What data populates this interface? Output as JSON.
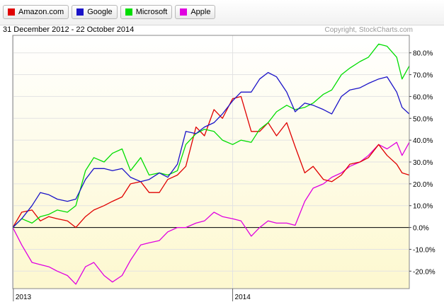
{
  "header": {
    "date_range": "31 December 2012 - 22 October 2014",
    "copyright": "Copyright, StockCharts.com"
  },
  "legend": [
    {
      "label": "Amazon.com",
      "color": "#e00000"
    },
    {
      "label": "Google",
      "color": "#1a12c8"
    },
    {
      "label": "Microsoft",
      "color": "#00dd00"
    },
    {
      "label": "Apple",
      "color": "#e000e0"
    }
  ],
  "chart_data": {
    "type": "line",
    "title": "",
    "xlabel": "",
    "ylabel": "",
    "x_ticks": [
      "2013",
      "2014"
    ],
    "y_ticks": [
      "80.0%",
      "70.0%",
      "60.0%",
      "50.0%",
      "40.0%",
      "30.0%",
      "20.0%",
      "10.0%",
      "0.0%",
      "-10.0%",
      "-20.0%"
    ],
    "ylim": [
      -28,
      88
    ],
    "xlim": [
      "2012-12-31",
      "2014-10-22"
    ],
    "series": [
      {
        "name": "Amazon.com",
        "color": "#e00000",
        "points": [
          [
            "2012-12-31",
            0
          ],
          [
            "2013-01-15",
            7
          ],
          [
            "2013-02-01",
            8
          ],
          [
            "2013-02-15",
            3
          ],
          [
            "2013-03-01",
            5
          ],
          [
            "2013-03-15",
            4
          ],
          [
            "2013-04-01",
            3
          ],
          [
            "2013-04-15",
            0
          ],
          [
            "2013-05-01",
            5
          ],
          [
            "2013-05-15",
            8
          ],
          [
            "2013-06-01",
            10
          ],
          [
            "2013-06-15",
            12
          ],
          [
            "2013-07-01",
            14
          ],
          [
            "2013-07-15",
            20
          ],
          [
            "2013-08-01",
            21
          ],
          [
            "2013-08-15",
            16
          ],
          [
            "2013-09-01",
            16
          ],
          [
            "2013-09-15",
            22
          ],
          [
            "2013-10-01",
            24
          ],
          [
            "2013-10-15",
            28
          ],
          [
            "2013-11-01",
            46
          ],
          [
            "2013-11-15",
            42
          ],
          [
            "2013-12-01",
            54
          ],
          [
            "2013-12-15",
            50
          ],
          [
            "2014-01-01",
            59
          ],
          [
            "2014-01-15",
            60
          ],
          [
            "2014-02-01",
            44
          ],
          [
            "2014-02-15",
            44
          ],
          [
            "2014-03-01",
            48
          ],
          [
            "2014-03-15",
            42
          ],
          [
            "2014-04-01",
            48
          ],
          [
            "2014-04-15",
            37
          ],
          [
            "2014-05-01",
            25
          ],
          [
            "2014-05-15",
            28
          ],
          [
            "2014-06-01",
            22
          ],
          [
            "2014-06-15",
            21
          ],
          [
            "2014-07-01",
            24
          ],
          [
            "2014-07-15",
            29
          ],
          [
            "2014-08-01",
            30
          ],
          [
            "2014-08-15",
            32
          ],
          [
            "2014-09-01",
            38
          ],
          [
            "2014-09-15",
            33
          ],
          [
            "2014-10-01",
            29
          ],
          [
            "2014-10-10",
            25
          ],
          [
            "2014-10-22",
            24
          ]
        ]
      },
      {
        "name": "Google",
        "color": "#1a12c8",
        "points": [
          [
            "2012-12-31",
            0
          ],
          [
            "2013-01-15",
            4
          ],
          [
            "2013-02-01",
            10
          ],
          [
            "2013-02-15",
            16
          ],
          [
            "2013-03-01",
            15
          ],
          [
            "2013-03-15",
            13
          ],
          [
            "2013-04-01",
            12
          ],
          [
            "2013-04-15",
            13
          ],
          [
            "2013-05-01",
            22
          ],
          [
            "2013-05-15",
            27
          ],
          [
            "2013-06-01",
            27
          ],
          [
            "2013-06-15",
            26
          ],
          [
            "2013-07-01",
            27
          ],
          [
            "2013-07-15",
            23
          ],
          [
            "2013-08-01",
            21
          ],
          [
            "2013-08-15",
            22
          ],
          [
            "2013-09-01",
            25
          ],
          [
            "2013-09-15",
            23
          ],
          [
            "2013-10-01",
            29
          ],
          [
            "2013-10-15",
            44
          ],
          [
            "2013-11-01",
            43
          ],
          [
            "2013-11-15",
            46
          ],
          [
            "2013-12-01",
            48
          ],
          [
            "2013-12-15",
            52
          ],
          [
            "2014-01-01",
            58
          ],
          [
            "2014-01-15",
            62
          ],
          [
            "2014-02-01",
            62
          ],
          [
            "2014-02-15",
            68
          ],
          [
            "2014-03-01",
            71
          ],
          [
            "2014-03-15",
            69
          ],
          [
            "2014-04-01",
            62
          ],
          [
            "2014-04-15",
            53
          ],
          [
            "2014-05-01",
            57
          ],
          [
            "2014-05-15",
            56
          ],
          [
            "2014-06-01",
            54
          ],
          [
            "2014-06-15",
            52
          ],
          [
            "2014-07-01",
            60
          ],
          [
            "2014-07-15",
            63
          ],
          [
            "2014-08-01",
            64
          ],
          [
            "2014-08-15",
            66
          ],
          [
            "2014-09-01",
            68
          ],
          [
            "2014-09-15",
            69
          ],
          [
            "2014-10-01",
            62
          ],
          [
            "2014-10-10",
            55
          ],
          [
            "2014-10-22",
            52
          ]
        ]
      },
      {
        "name": "Microsoft",
        "color": "#00dd00",
        "points": [
          [
            "2012-12-31",
            0
          ],
          [
            "2013-01-15",
            4
          ],
          [
            "2013-02-01",
            2
          ],
          [
            "2013-02-15",
            5
          ],
          [
            "2013-03-01",
            6
          ],
          [
            "2013-03-15",
            8
          ],
          [
            "2013-04-01",
            7
          ],
          [
            "2013-04-15",
            10
          ],
          [
            "2013-05-01",
            26
          ],
          [
            "2013-05-15",
            32
          ],
          [
            "2013-06-01",
            30
          ],
          [
            "2013-06-15",
            34
          ],
          [
            "2013-07-01",
            36
          ],
          [
            "2013-07-15",
            26
          ],
          [
            "2013-08-01",
            32
          ],
          [
            "2013-08-15",
            24
          ],
          [
            "2013-09-01",
            25
          ],
          [
            "2013-09-15",
            24
          ],
          [
            "2013-10-01",
            26
          ],
          [
            "2013-10-15",
            38
          ],
          [
            "2013-11-01",
            43
          ],
          [
            "2013-11-15",
            45
          ],
          [
            "2013-12-01",
            44
          ],
          [
            "2013-12-15",
            40
          ],
          [
            "2014-01-01",
            38
          ],
          [
            "2014-01-15",
            40
          ],
          [
            "2014-02-01",
            39
          ],
          [
            "2014-02-15",
            45
          ],
          [
            "2014-03-01",
            48
          ],
          [
            "2014-03-15",
            53
          ],
          [
            "2014-04-01",
            56
          ],
          [
            "2014-04-15",
            54
          ],
          [
            "2014-05-01",
            55
          ],
          [
            "2014-05-15",
            57
          ],
          [
            "2014-06-01",
            61
          ],
          [
            "2014-06-15",
            63
          ],
          [
            "2014-07-01",
            70
          ],
          [
            "2014-07-15",
            73
          ],
          [
            "2014-08-01",
            76
          ],
          [
            "2014-08-15",
            78
          ],
          [
            "2014-09-01",
            84
          ],
          [
            "2014-09-15",
            83
          ],
          [
            "2014-10-01",
            78
          ],
          [
            "2014-10-10",
            68
          ],
          [
            "2014-10-22",
            74
          ]
        ]
      },
      {
        "name": "Apple",
        "color": "#e000e0",
        "points": [
          [
            "2012-12-31",
            0
          ],
          [
            "2013-01-15",
            -8
          ],
          [
            "2013-02-01",
            -16
          ],
          [
            "2013-02-15",
            -17
          ],
          [
            "2013-03-01",
            -18
          ],
          [
            "2013-03-15",
            -20
          ],
          [
            "2013-04-01",
            -22
          ],
          [
            "2013-04-15",
            -26
          ],
          [
            "2013-05-01",
            -18
          ],
          [
            "2013-05-15",
            -16
          ],
          [
            "2013-06-01",
            -22
          ],
          [
            "2013-06-15",
            -25
          ],
          [
            "2013-07-01",
            -22
          ],
          [
            "2013-07-15",
            -15
          ],
          [
            "2013-08-01",
            -8
          ],
          [
            "2013-08-15",
            -7
          ],
          [
            "2013-09-01",
            -6
          ],
          [
            "2013-09-15",
            -2
          ],
          [
            "2013-10-01",
            0
          ],
          [
            "2013-10-15",
            0
          ],
          [
            "2013-11-01",
            2
          ],
          [
            "2013-11-15",
            3
          ],
          [
            "2013-12-01",
            7
          ],
          [
            "2013-12-15",
            5
          ],
          [
            "2014-01-01",
            4
          ],
          [
            "2014-01-15",
            3
          ],
          [
            "2014-02-01",
            -4
          ],
          [
            "2014-02-15",
            0
          ],
          [
            "2014-03-01",
            3
          ],
          [
            "2014-03-15",
            2
          ],
          [
            "2014-04-01",
            2
          ],
          [
            "2014-04-15",
            1
          ],
          [
            "2014-05-01",
            12
          ],
          [
            "2014-05-15",
            18
          ],
          [
            "2014-06-01",
            20
          ],
          [
            "2014-06-15",
            23
          ],
          [
            "2014-07-01",
            25
          ],
          [
            "2014-07-15",
            28
          ],
          [
            "2014-08-01",
            30
          ],
          [
            "2014-08-15",
            33
          ],
          [
            "2014-09-01",
            38
          ],
          [
            "2014-09-15",
            36
          ],
          [
            "2014-10-01",
            39
          ],
          [
            "2014-10-10",
            33
          ],
          [
            "2014-10-22",
            39
          ]
        ]
      }
    ]
  }
}
